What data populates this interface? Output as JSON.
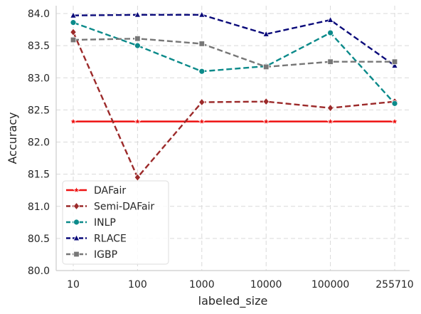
{
  "chart_data": {
    "type": "line",
    "title": "",
    "xlabel": "labeled_size",
    "ylabel": "Accuracy",
    "categories": [
      "10",
      "100",
      "1000",
      "10000",
      "100000",
      "255710"
    ],
    "ylim": [
      80.0,
      84.0
    ],
    "yticks": [
      "80.0",
      "80.5",
      "81.0",
      "81.5",
      "82.0",
      "82.5",
      "83.0",
      "83.5",
      "84.0"
    ],
    "grid": true,
    "legend_position": "lower-left",
    "series": [
      {
        "name": "DAFair",
        "color": "#ee1111",
        "dash": "solid",
        "marker": "star",
        "values": [
          82.32,
          82.32,
          82.32,
          82.32,
          82.32,
          82.32
        ]
      },
      {
        "name": "Semi-DAFair",
        "color": "#9c2a2a",
        "dash": "dashed",
        "marker": "diamond",
        "values": [
          83.71,
          81.45,
          82.62,
          82.63,
          82.53,
          82.63
        ]
      },
      {
        "name": "INLP",
        "color": "#0b8a8a",
        "dash": "dashed",
        "marker": "circle",
        "values": [
          83.86,
          83.5,
          83.1,
          83.18,
          83.7,
          82.6
        ]
      },
      {
        "name": "RLACE",
        "color": "#0a0a7a",
        "dash": "dashed",
        "marker": "triangle",
        "values": [
          83.97,
          83.98,
          83.98,
          83.68,
          83.9,
          83.19
        ]
      },
      {
        "name": "IGBP",
        "color": "#777777",
        "dash": "dashed",
        "marker": "square",
        "values": [
          83.59,
          83.61,
          83.53,
          83.17,
          83.25,
          83.25
        ]
      }
    ]
  }
}
